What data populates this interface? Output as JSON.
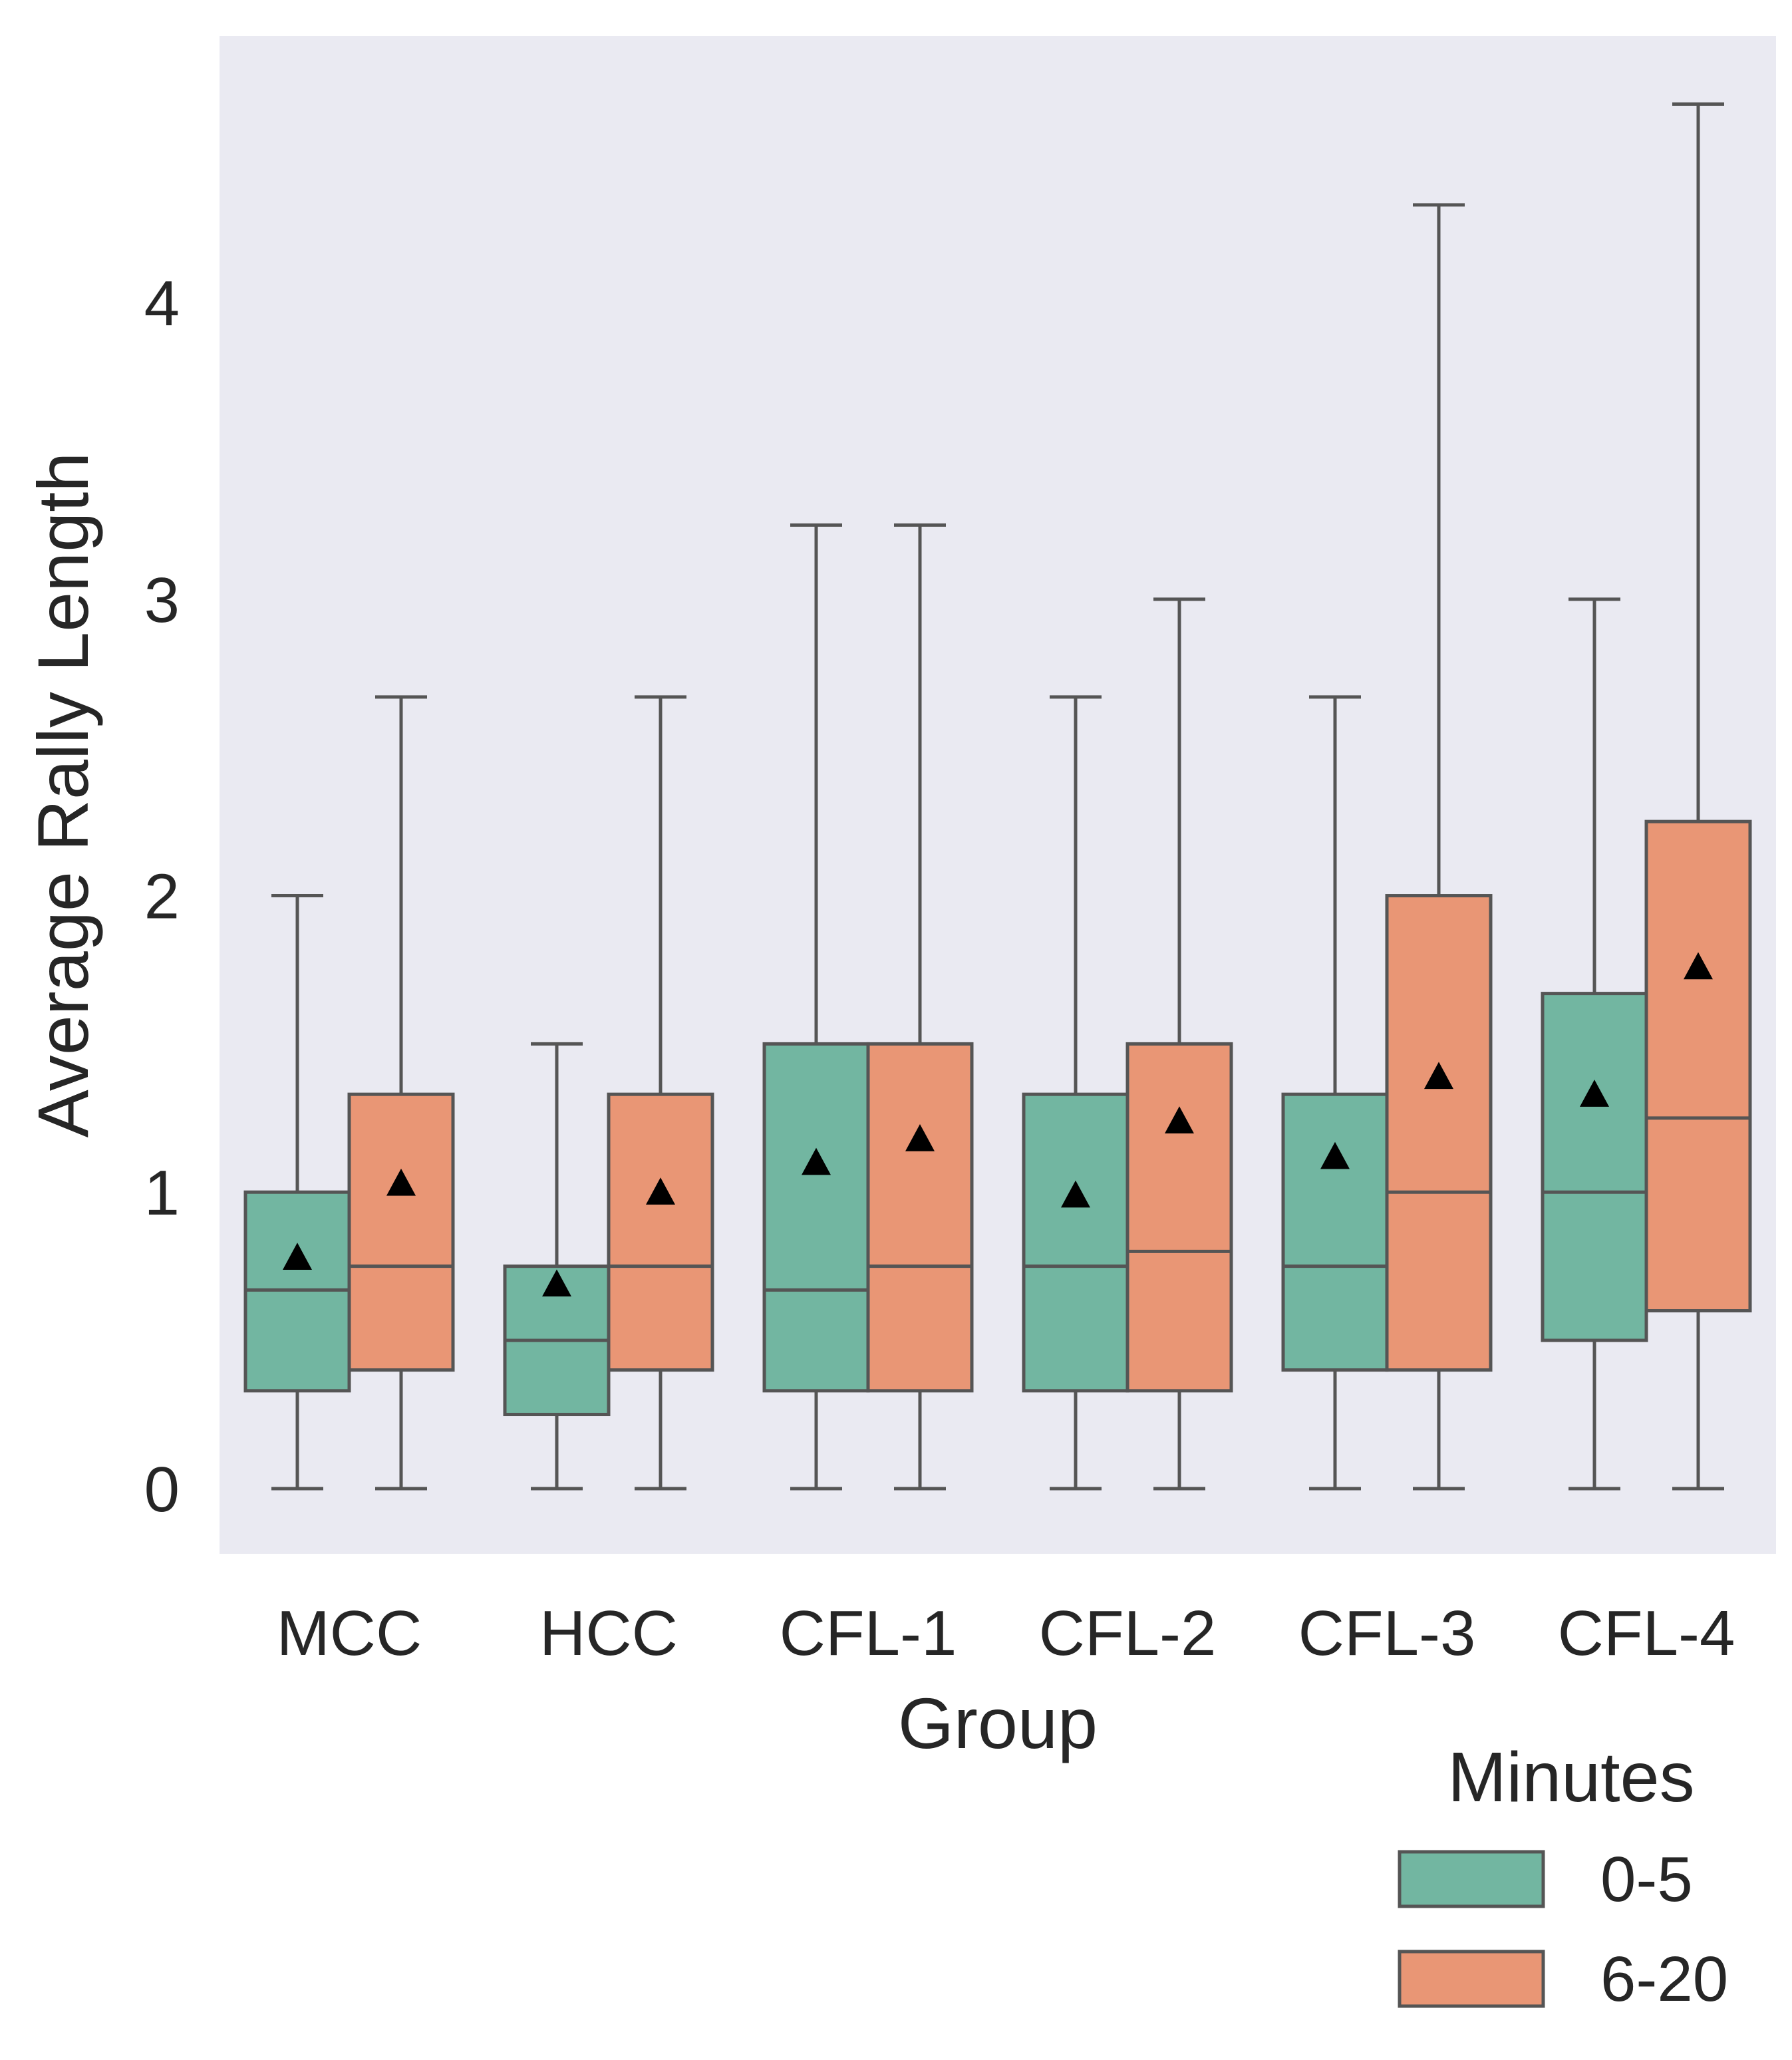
{
  "chart_data": {
    "type": "box",
    "xlabel": "Group",
    "ylabel": "Average Rally Length",
    "categories": [
      "MCC",
      "HCC",
      "CFL-1",
      "CFL-2",
      "CFL-3",
      "CFL-4"
    ],
    "ylim": [
      -0.22,
      4.9
    ],
    "yticks": [
      0,
      1,
      2,
      3,
      4
    ],
    "grid": false,
    "show_means": true,
    "mean_marker": "triangle",
    "background_color": "#eaeaf2",
    "edge_color": "#555555",
    "legend": {
      "title": "Minutes",
      "placement": "bottom-right, below plot"
    },
    "series": [
      {
        "name": "0-5",
        "color": "#72b6a1",
        "boxes": [
          {
            "whislo": 0,
            "q1": 0.33,
            "med": 0.67,
            "q3": 1.0,
            "whishi": 2.0,
            "mean": 0.78
          },
          {
            "whislo": 0,
            "q1": 0.25,
            "med": 0.5,
            "q3": 0.75,
            "whishi": 1.5,
            "mean": 0.69
          },
          {
            "whislo": 0,
            "q1": 0.33,
            "med": 0.67,
            "q3": 1.5,
            "whishi": 3.25,
            "mean": 1.1
          },
          {
            "whislo": 0,
            "q1": 0.33,
            "med": 0.75,
            "q3": 1.33,
            "whishi": 2.67,
            "mean": 0.99
          },
          {
            "whislo": 0,
            "q1": 0.4,
            "med": 0.75,
            "q3": 1.33,
            "whishi": 2.67,
            "mean": 1.12
          },
          {
            "whislo": 0,
            "q1": 0.5,
            "med": 1.0,
            "q3": 1.67,
            "whishi": 3.0,
            "mean": 1.33
          }
        ]
      },
      {
        "name": "6-20",
        "color": "#e99675",
        "boxes": [
          {
            "whislo": 0,
            "q1": 0.4,
            "med": 0.75,
            "q3": 1.33,
            "whishi": 2.67,
            "mean": 1.03
          },
          {
            "whislo": 0,
            "q1": 0.4,
            "med": 0.75,
            "q3": 1.33,
            "whishi": 2.67,
            "mean": 1.0
          },
          {
            "whislo": 0,
            "q1": 0.33,
            "med": 0.75,
            "q3": 1.5,
            "whishi": 3.25,
            "mean": 1.18
          },
          {
            "whislo": 0,
            "q1": 0.33,
            "med": 0.8,
            "q3": 1.5,
            "whishi": 3.0,
            "mean": 1.24
          },
          {
            "whislo": 0,
            "q1": 0.4,
            "med": 1.0,
            "q3": 2.0,
            "whishi": 4.33,
            "mean": 1.39
          },
          {
            "whislo": 0,
            "q1": 0.6,
            "med": 1.25,
            "q3": 2.25,
            "whishi": 4.67,
            "mean": 1.76
          }
        ]
      }
    ]
  }
}
